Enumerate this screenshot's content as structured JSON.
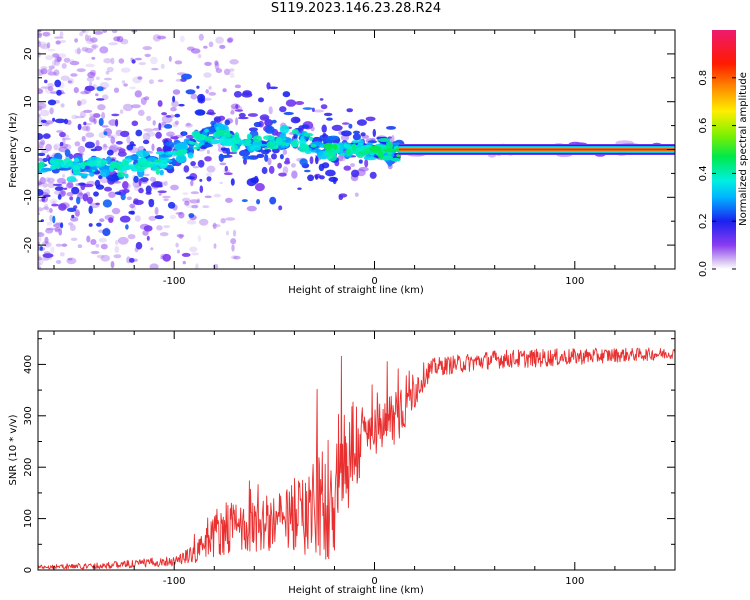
{
  "title": "S119.2023.146.23.28.R24",
  "colorbar": {
    "label": "Normalized spectral amplitude",
    "ticks": [
      "0.0",
      "0.2",
      "0.4",
      "0.6",
      "0.8"
    ],
    "tick_values": [
      0.0,
      0.2,
      0.4,
      0.6,
      0.8
    ],
    "range": [
      0,
      1
    ]
  },
  "chart_data": [
    {
      "type": "heatmap",
      "xlabel": "Height of straight line (km)",
      "ylabel": "Frequency (Hz)",
      "xlim": [
        -168,
        150
      ],
      "ylim": [
        -25,
        25
      ],
      "xticks": [
        -100,
        0,
        100
      ],
      "xtick_labels": [
        "-100",
        "0",
        "100"
      ],
      "yticks": [
        -20,
        -10,
        0,
        10,
        20
      ],
      "ytick_labels": [
        "-20",
        "-10",
        "0",
        "10",
        "20"
      ],
      "colormap": "rainbow (white-violet-blue-cyan-green-yellow-red-pink)",
      "features": {
        "carrier_line": {
          "frequency_hz": 0,
          "x_from": 12,
          "x_to": 150,
          "amplitude": 0.9
        },
        "dispersed_blobs_trend": [
          [
            -168,
            -3
          ],
          [
            -120,
            -4
          ],
          [
            -100,
            -1
          ],
          [
            -80,
            3
          ],
          [
            -60,
            1
          ],
          [
            -40,
            2
          ],
          [
            -20,
            0
          ],
          [
            10,
            0
          ]
        ]
      }
    },
    {
      "type": "line",
      "xlabel": "Height of straight line (km)",
      "ylabel": "SNR (10 * v/v)",
      "xlim": [
        -168,
        150
      ],
      "ylim": [
        0,
        465
      ],
      "xticks": [
        -100,
        0,
        100
      ],
      "xtick_labels": [
        "-100",
        "0",
        "100"
      ],
      "yticks": [
        0,
        100,
        200,
        300,
        400
      ],
      "ytick_labels": [
        "0",
        "100",
        "200",
        "300",
        "400"
      ],
      "line_color": "#e83030",
      "envelope": {
        "x": [
          -168,
          -140,
          -120,
          -100,
          -90,
          -85,
          -75,
          -65,
          -55,
          -45,
          -35,
          -25,
          -20,
          -15,
          -10,
          -5,
          0,
          5,
          10,
          15,
          20,
          25,
          30,
          40,
          50,
          60,
          80,
          100,
          120,
          140,
          150
        ],
        "mean": [
          6,
          8,
          12,
          18,
          30,
          55,
          85,
          80,
          90,
          95,
          110,
          130,
          160,
          210,
          240,
          260,
          270,
          280,
          300,
          330,
          350,
          380,
          395,
          400,
          405,
          410,
          412,
          415,
          418,
          420,
          422
        ],
        "spread": [
          4,
          6,
          8,
          10,
          20,
          35,
          55,
          45,
          55,
          60,
          80,
          120,
          140,
          130,
          110,
          60,
          50,
          50,
          70,
          60,
          40,
          25,
          18,
          18,
          18,
          18,
          18,
          16,
          14,
          12,
          10
        ]
      }
    }
  ]
}
